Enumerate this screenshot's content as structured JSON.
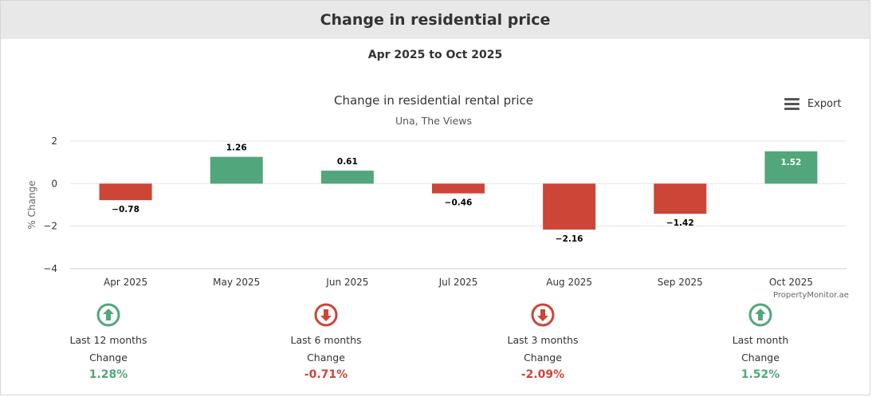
{
  "header": {
    "title": "Change in residential price"
  },
  "date_range": "Apr 2025 to Oct 2025",
  "export": {
    "label": "Export",
    "icon": "menu-icon"
  },
  "credit": "PropertyMonitor.ae",
  "colors": {
    "positive": "#52a67b",
    "negative": "#cc4537",
    "header_bg": "#e8e8e8"
  },
  "chart_data": {
    "type": "bar",
    "title": "Change in residential rental price",
    "subtitle": "Una, The Views",
    "ylabel": "% Change",
    "xlabel": "",
    "categories": [
      "Apr 2025",
      "May 2025",
      "Jun 2025",
      "Jul 2025",
      "Aug 2025",
      "Sep 2025",
      "Oct 2025"
    ],
    "values": [
      -0.78,
      1.26,
      0.61,
      -0.46,
      -2.16,
      -1.42,
      1.52
    ],
    "value_labels": [
      "−0.78",
      "1.26",
      "0.61",
      "−0.46",
      "−2.16",
      "−1.42",
      "1.52"
    ],
    "ylim": [
      -4,
      2
    ],
    "yticks": [
      2,
      0,
      -2,
      -4
    ],
    "ytick_labels": [
      "2",
      "0",
      "−2",
      "−4"
    ],
    "grid": true,
    "legend": "none"
  },
  "stats": [
    {
      "period": "Last 12 months",
      "label": "Change",
      "value": "1.28%",
      "direction": "up",
      "icon": "arrow-up-circle-icon"
    },
    {
      "period": "Last 6 months",
      "label": "Change",
      "value": "-0.71%",
      "direction": "down",
      "icon": "arrow-down-circle-icon"
    },
    {
      "period": "Last 3 months",
      "label": "Change",
      "value": "-2.09%",
      "direction": "down",
      "icon": "arrow-down-circle-icon"
    },
    {
      "period": "Last month",
      "label": "Change",
      "value": "1.52%",
      "direction": "up",
      "icon": "arrow-up-circle-icon"
    }
  ]
}
